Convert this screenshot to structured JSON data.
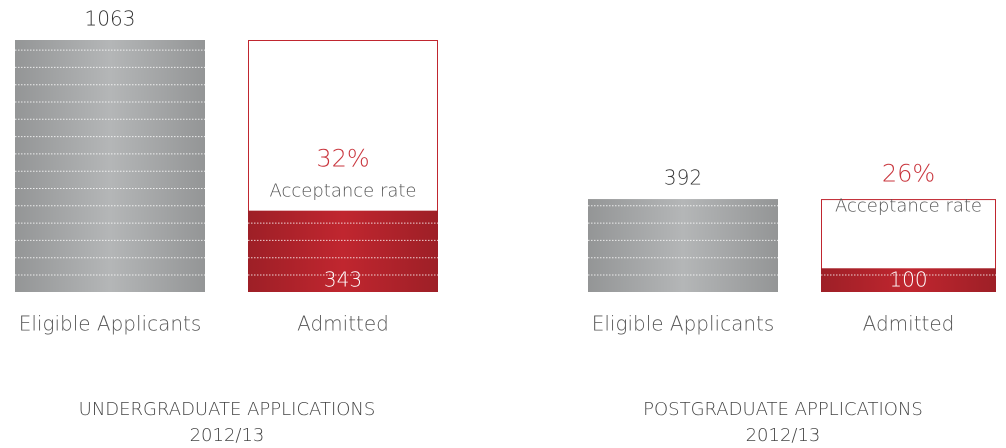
{
  "chart_data": [
    {
      "type": "bar",
      "title": "UNDERGRADUATE APPLICATIONS",
      "subtitle": "2012/13",
      "categories": [
        "Eligible Applicants",
        "Admitted"
      ],
      "values": [
        1063,
        343
      ],
      "colors": [
        "#b4b6b7",
        "#c0262f"
      ],
      "acceptance_rate": {
        "value": 32,
        "label": "32%"
      },
      "acceptance_text": "Acceptance rate"
    },
    {
      "type": "bar",
      "title": "POSTGRADUATE APPLICATIONS",
      "subtitle": "2012/13",
      "categories": [
        "Eligible Applicants",
        "Admitted"
      ],
      "values": [
        392,
        100
      ],
      "colors": [
        "#b4b6b7",
        "#c0262f"
      ],
      "acceptance_rate": {
        "value": 26,
        "label": "26%"
      },
      "acceptance_text": "Acceptance rate"
    }
  ]
}
